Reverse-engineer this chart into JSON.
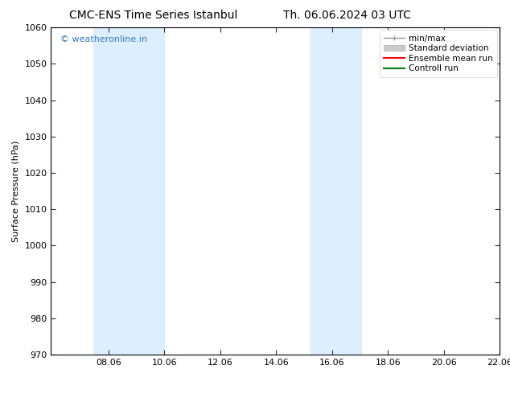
{
  "title_left": "CMC-ENS Time Series Istanbul",
  "title_right": "Th. 06.06.2024 03 UTC",
  "ylabel": "Surface Pressure (hPa)",
  "xlabel": "",
  "ylim": [
    970,
    1060
  ],
  "yticks": [
    970,
    980,
    990,
    1000,
    1010,
    1020,
    1030,
    1040,
    1050,
    1060
  ],
  "xlim": [
    6.0,
    22.06
  ],
  "xticks": [
    8.06,
    10.06,
    12.06,
    14.06,
    16.06,
    18.06,
    20.06,
    22.06
  ],
  "xtick_labels": [
    "08.06",
    "10.06",
    "12.06",
    "14.06",
    "16.06",
    "18.06",
    "20.06",
    "22.06"
  ],
  "shaded_bands": [
    {
      "x_start": 7.5,
      "x_end": 10.06
    },
    {
      "x_start": 15.3,
      "x_end": 17.1
    }
  ],
  "band_color": "#ddeeff",
  "watermark_text": "© weatheronline.in",
  "watermark_color": "#3377bb",
  "legend_entries": [
    {
      "label": "min/max",
      "color": "#aaaaaa",
      "lw": 1.0
    },
    {
      "label": "Standard deviation",
      "color": "#cccccc",
      "lw": 6
    },
    {
      "label": "Ensemble mean run",
      "color": "red",
      "lw": 1.5
    },
    {
      "label": "Controll run",
      "color": "green",
      "lw": 1.5
    }
  ],
  "bg_color": "#ffffff",
  "spine_color": "#000000",
  "font_color": "#000000",
  "title_fontsize": 10,
  "axis_fontsize": 8,
  "tick_fontsize": 8,
  "legend_fontsize": 7.5
}
